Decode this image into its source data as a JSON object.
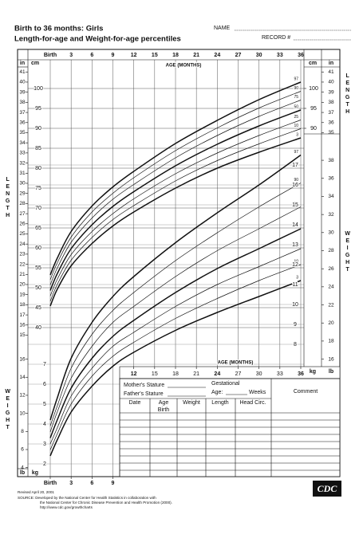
{
  "header": {
    "title": "Birth to 36 months: Girls",
    "subtitle": "Length-for-age and Weight-for-age percentiles",
    "name_label": "NAME",
    "record_label": "RECORD #"
  },
  "side_labels": {
    "length": "LENGTH",
    "weight": "WEIGHT"
  },
  "chart_data": [
    {
      "type": "line",
      "x_label": "AGE (MONTHS)",
      "y_unit": "cm",
      "y2_unit": "in",
      "x": [
        0,
        1,
        3,
        6,
        9,
        12,
        18,
        24,
        30,
        36
      ],
      "xlim": [
        0,
        36
      ],
      "xticks": [
        {
          "value": 0,
          "label": "Birth"
        },
        3,
        6,
        9,
        12,
        15,
        18,
        21,
        24,
        27,
        30,
        33,
        36
      ],
      "ylim": [
        38,
        106
      ],
      "y2lim": [
        14.96,
        41.73
      ],
      "yticks_left": [
        40,
        45,
        50,
        55,
        60,
        65,
        70,
        75,
        80,
        85,
        90,
        95,
        100
      ],
      "y2ticks_left": [
        15,
        16,
        17,
        18,
        19,
        20,
        21,
        22,
        23,
        24,
        25,
        26,
        27,
        28,
        29,
        30,
        31,
        32,
        33,
        34,
        35,
        36,
        37,
        38,
        39,
        40,
        41
      ],
      "yticks_right": [
        90,
        95,
        100
      ],
      "y2ticks_right": [
        35,
        36,
        37,
        38,
        39,
        40,
        41
      ],
      "grid": true,
      "series": [
        {
          "name": "3",
          "color": "#111111",
          "linewidth": 1.5,
          "values": [
            45.4,
            49.6,
            55.5,
            61.1,
            65.5,
            69.0,
            75.0,
            80.0,
            84.0,
            87.6
          ]
        },
        {
          "name": "10",
          "color": "#111111",
          "linewidth": 0.7,
          "values": [
            46.6,
            50.8,
            56.9,
            62.6,
            67.1,
            70.6,
            76.8,
            81.9,
            86.1,
            89.9
          ]
        },
        {
          "name": "25",
          "color": "#111111",
          "linewidth": 0.7,
          "values": [
            47.9,
            52.1,
            58.3,
            64.1,
            68.6,
            72.3,
            78.6,
            83.8,
            88.2,
            92.1
          ]
        },
        {
          "name": "50",
          "color": "#111111",
          "linewidth": 1.5,
          "values": [
            49.3,
            53.5,
            59.8,
            65.8,
            70.4,
            74.1,
            80.6,
            86.0,
            90.6,
            94.6
          ]
        },
        {
          "name": "75",
          "color": "#111111",
          "linewidth": 0.7,
          "values": [
            50.7,
            54.9,
            61.4,
            67.5,
            72.2,
            75.9,
            82.6,
            88.2,
            93.0,
            97.1
          ]
        },
        {
          "name": "90",
          "color": "#111111",
          "linewidth": 0.7,
          "values": [
            52.0,
            56.2,
            62.7,
            69.0,
            73.7,
            77.6,
            84.4,
            90.1,
            95.1,
            99.3
          ]
        },
        {
          "name": "97",
          "color": "#111111",
          "linewidth": 1.5,
          "values": [
            53.2,
            57.4,
            64.1,
            70.5,
            75.3,
            79.2,
            86.2,
            92.0,
            97.2,
            101.6
          ]
        }
      ]
    },
    {
      "type": "line",
      "x_label": "AGE (MONTHS)",
      "y_unit": "kg",
      "y2_unit": "lb",
      "x": [
        0,
        1,
        3,
        6,
        9,
        12,
        18,
        24,
        30,
        36
      ],
      "xlim": [
        0,
        36
      ],
      "xticks_bottom": [
        {
          "value": 0,
          "label": "Birth"
        },
        3,
        6,
        9
      ],
      "xticks_mid": [
        12,
        15,
        18,
        21,
        24,
        27,
        30,
        33,
        36
      ],
      "ylim": [
        1.4,
        22
      ],
      "y2lim": [
        3.09,
        48.5
      ],
      "yticks_left": [
        2,
        3,
        4,
        5,
        6,
        7
      ],
      "y2ticks_left": [
        4,
        6,
        8,
        10,
        12,
        14,
        16
      ],
      "yticks_right": [
        8,
        9,
        10,
        11,
        12,
        13,
        14,
        15,
        16,
        17
      ],
      "y2ticks_right": [
        16,
        18,
        20,
        22,
        24,
        26,
        28,
        30,
        32,
        34,
        36,
        38
      ],
      "grid": true,
      "series": [
        {
          "name": "3",
          "color": "#111111",
          "linewidth": 1.5,
          "values": [
            2.4,
            3.2,
            4.6,
            5.9,
            6.9,
            7.6,
            8.7,
            9.6,
            10.4,
            11.2
          ]
        },
        {
          "name": "10",
          "color": "#111111",
          "linewidth": 0.7,
          "values": [
            2.7,
            3.5,
            5.0,
            6.4,
            7.4,
            8.1,
            9.3,
            10.3,
            11.2,
            12.0
          ]
        },
        {
          "name": "25",
          "color": "#111111",
          "linewidth": 0.7,
          "values": [
            3.0,
            3.8,
            5.4,
            6.8,
            7.9,
            8.6,
            9.9,
            11.0,
            11.9,
            12.8
          ]
        },
        {
          "name": "50",
          "color": "#111111",
          "linewidth": 1.5,
          "values": [
            3.3,
            4.2,
            5.8,
            7.3,
            8.4,
            9.2,
            10.6,
            11.8,
            12.8,
            13.8
          ]
        },
        {
          "name": "75",
          "color": "#111111",
          "linewidth": 0.7,
          "values": [
            3.6,
            4.6,
            6.3,
            7.9,
            9.1,
            9.9,
            11.4,
            12.7,
            13.8,
            14.9
          ]
        },
        {
          "name": "90",
          "color": "#111111",
          "linewidth": 0.7,
          "values": [
            3.9,
            4.9,
            6.8,
            8.5,
            9.7,
            10.6,
            12.2,
            13.6,
            14.9,
            16.1
          ]
        },
        {
          "name": "97",
          "color": "#111111",
          "linewidth": 1.5,
          "values": [
            4.2,
            5.3,
            7.3,
            9.1,
            10.4,
            11.4,
            13.1,
            14.6,
            16.0,
            17.5
          ]
        }
      ]
    }
  ],
  "record_table": {
    "mothers_stature": "Mother's Stature",
    "fathers_stature": "Father's Stature",
    "gestational": "Gestational",
    "age": "Age:",
    "weeks": "Weeks",
    "comment": "Comment",
    "columns": [
      "Date",
      "Age",
      "Weight",
      "Length",
      "Head Circ."
    ],
    "birth": "Birth"
  },
  "footer": {
    "revised": "Revised April 20, 2001",
    "source": [
      "SOURCE: Developed by the National Center for Health Statistics in collaboration with",
      "the National Center for Chronic Disease Prevention and Health Promotion (2000).",
      "http://www.cdc.gov/growthcharts"
    ],
    "logo": "CDC"
  }
}
